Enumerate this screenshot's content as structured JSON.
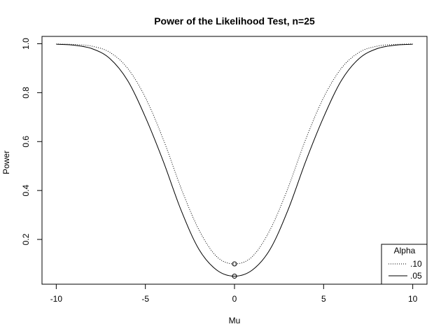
{
  "chart_data": {
    "type": "line",
    "title": "Power of the Likelihood Test, n=25",
    "xlabel": "Mu",
    "ylabel": "Power",
    "xlim": [
      -10.8,
      10.8
    ],
    "ylim": [
      0.017,
      1.03
    ],
    "x_ticks": [
      -10,
      -5,
      0,
      5,
      10
    ],
    "x_tick_labels": [
      "-10",
      "-5",
      "0",
      "5",
      "10"
    ],
    "y_ticks": [
      0.2,
      0.4,
      0.6,
      0.8,
      1.0
    ],
    "y_tick_labels": [
      "0.2",
      "0.4",
      "0.6",
      "0.8",
      "1.0"
    ],
    "grid": false,
    "legend": {
      "title": "Alpha",
      "position": "bottom-right",
      "entries": [
        {
          "label": ".10",
          "style": "dotted"
        },
        {
          "label": ".05",
          "style": "solid"
        }
      ]
    },
    "series": [
      {
        "label": ".10",
        "style": "dotted",
        "x": [
          -10,
          -9,
          -8,
          -7,
          -6,
          -5,
          -4,
          -3,
          -2,
          -1,
          0,
          1,
          2,
          3,
          4,
          5,
          6,
          7,
          8,
          9,
          10
        ],
        "values": [
          0.999,
          0.997,
          0.99,
          0.965,
          0.9,
          0.78,
          0.61,
          0.41,
          0.24,
          0.13,
          0.1,
          0.13,
          0.24,
          0.41,
          0.61,
          0.78,
          0.9,
          0.965,
          0.99,
          0.997,
          0.999
        ]
      },
      {
        "label": ".05",
        "style": "solid",
        "x": [
          -10,
          -9,
          -8,
          -7,
          -6,
          -5,
          -4,
          -3,
          -2,
          -1,
          0,
          1,
          2,
          3,
          4,
          5,
          6,
          7,
          8,
          9,
          10
        ],
        "values": [
          0.998,
          0.994,
          0.98,
          0.94,
          0.85,
          0.7,
          0.52,
          0.32,
          0.16,
          0.075,
          0.05,
          0.075,
          0.16,
          0.32,
          0.52,
          0.7,
          0.85,
          0.94,
          0.98,
          0.994,
          0.998
        ]
      }
    ],
    "points": [
      {
        "x": 0,
        "y": 0.1
      },
      {
        "x": 0,
        "y": 0.05
      }
    ]
  }
}
